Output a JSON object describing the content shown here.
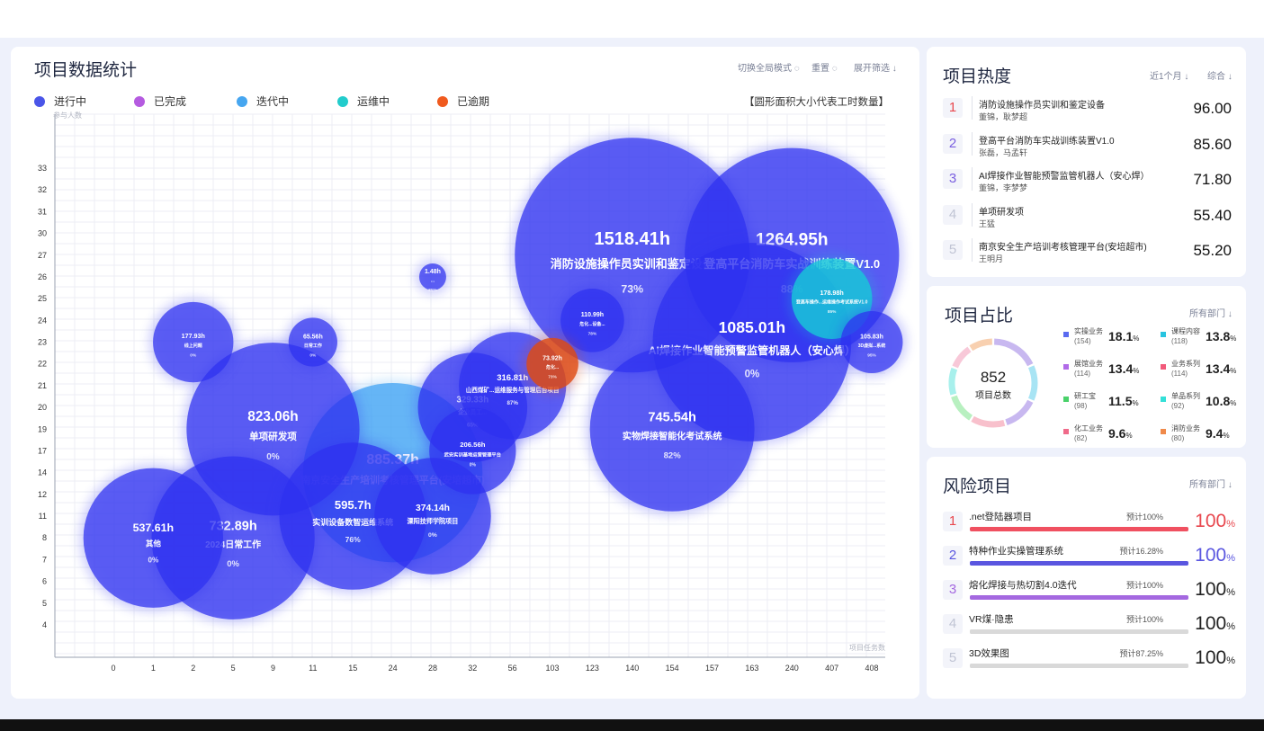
{
  "main": {
    "title": "项目数据统计",
    "actions": [
      "切换全局模式",
      "重置",
      "展开筛选"
    ],
    "legend": [
      {
        "label": "进行中",
        "color": "#4a55e8"
      },
      {
        "label": "已完成",
        "color": "#b55be0"
      },
      {
        "label": "迭代中",
        "color": "#46a6f0"
      },
      {
        "label": "运维中",
        "color": "#22cccc"
      },
      {
        "label": "已逾期",
        "color": "#f05a1e"
      }
    ],
    "note": "【圆形面积大小代表工时数量】"
  },
  "chart_data": {
    "type": "scatter",
    "ylabel": "参与人数",
    "xlabel": "项目任务数",
    "x_categories": [
      "0",
      "1",
      "2",
      "5",
      "9",
      "11",
      "15",
      "24",
      "28",
      "32",
      "56",
      "103",
      "123",
      "140",
      "154",
      "157",
      "163",
      "240",
      "407",
      "408"
    ],
    "y_ticks": [
      "4",
      "5",
      "6",
      "7",
      "8",
      "11",
      "12",
      "14",
      "17",
      "19",
      "20",
      "21",
      "22",
      "23",
      "24",
      "25",
      "26",
      "27",
      "30",
      "31",
      "32",
      "33"
    ],
    "bubbles": [
      {
        "name": "消防设施操作员实训和鉴定设备",
        "hours": "1518.41h",
        "progress": "73%",
        "x": "140",
        "y": "27",
        "status": "进行中"
      },
      {
        "name": "登高平台消防车实战训练装置V1.0",
        "hours": "1264.95h",
        "progress": "88%",
        "x": "240",
        "y": "27",
        "status": "进行中"
      },
      {
        "name": "AI焊接作业智能预警监管机器人（安心焊）",
        "hours": "1085.01h",
        "progress": "0%",
        "x": "163",
        "y": "23",
        "status": "进行中"
      },
      {
        "name": "南京安全生产培训考核管理平台(安培超市)",
        "hours": "885.37h",
        "progress": "",
        "x": "24",
        "y": "14",
        "status": "迭代中"
      },
      {
        "name": "单项研发项",
        "hours": "823.06h",
        "progress": "0%",
        "x": "9",
        "y": "19",
        "status": "进行中"
      },
      {
        "name": "实物焊接智能化考试系统",
        "hours": "745.54h",
        "progress": "82%",
        "x": "154",
        "y": "19",
        "status": "进行中"
      },
      {
        "name": "2024日常工作",
        "hours": "732.89h",
        "progress": "0%",
        "x": "5",
        "y": "8",
        "status": "进行中"
      },
      {
        "name": "实训设备数智运维系统",
        "hours": "595.7h",
        "progress": "76%",
        "x": "15",
        "y": "11",
        "status": "进行中"
      },
      {
        "name": "其他",
        "hours": "537.61h",
        "progress": "0%",
        "x": "1",
        "y": "8",
        "status": "进行中"
      },
      {
        "name": "溧阳技师学院项目",
        "hours": "374.14h",
        "progress": "0%",
        "x": "28",
        "y": "11",
        "status": "进行中"
      },
      {
        "name": "企业员工...",
        "hours": "329.33h",
        "progress": "65%",
        "x": "32",
        "y": "20",
        "status": "进行中"
      },
      {
        "name": "山西煤矿...运维服务与管理后台项目",
        "hours": "316.81h",
        "progress": "87%",
        "x": "56",
        "y": "21",
        "status": "进行中"
      },
      {
        "name": "武安实训基地运营管理平台",
        "hours": "206.56h",
        "progress": "0%",
        "x": "32",
        "y": "17",
        "status": "进行中"
      },
      {
        "name": "线上问题",
        "hours": "177.93h",
        "progress": "0%",
        "x": "2",
        "y": "23",
        "status": "进行中"
      },
      {
        "name": "登高车操作...运维操作考试系统V1.0",
        "hours": "178.98h",
        "progress": "85%",
        "x": "407",
        "y": "25",
        "status": "运维中"
      },
      {
        "name": "危化...设备...",
        "hours": "110.99h",
        "progress": "78%",
        "x": "123",
        "y": "24",
        "status": "进行中"
      },
      {
        "name": "3D虚拟...系统",
        "hours": "105.83h",
        "progress": "95%",
        "x": "408",
        "y": "23",
        "status": "进行中"
      },
      {
        "name": "危化...",
        "hours": "73.92h",
        "progress": "73%",
        "x": "103",
        "y": "22",
        "status": "已逾期"
      },
      {
        "name": "日常工作",
        "hours": "65.56h",
        "progress": "0%",
        "x": "11",
        "y": "23",
        "status": "进行中"
      },
      {
        "name": "...",
        "hours": "1.48h",
        "progress": "85%",
        "x": "28",
        "y": "26",
        "status": "进行中"
      }
    ]
  },
  "heat": {
    "title": "项目热度",
    "filters": [
      "近1个月",
      "综合"
    ],
    "items": [
      {
        "rank": "1",
        "name": "消防设施操作员实训和鉴定设备",
        "people": "董锦，耿梦超",
        "score": "96.00",
        "color": "#e8474e"
      },
      {
        "rank": "2",
        "name": "登高平台消防车实战训练装置V1.0",
        "people": "张磊，马孟轩",
        "score": "85.60",
        "color": "#7a5fe0"
      },
      {
        "rank": "3",
        "name": "AI焊接作业智能预警监管机器人（安心焊）",
        "people": "董锦，李梦梦",
        "score": "71.80",
        "color": "#7a5fe0"
      },
      {
        "rank": "4",
        "name": "单项研发项",
        "people": "王猛",
        "score": "55.40",
        "color": "#c0c4d4"
      },
      {
        "rank": "5",
        "name": "南京安全生产培训考核管理平台(安培超市)",
        "people": "王明月",
        "score": "55.20",
        "color": "#c0c4d4"
      }
    ]
  },
  "ratio": {
    "title": "项目占比",
    "filter": "所有部门",
    "total": "852",
    "total_label": "项目总数",
    "items": [
      {
        "label": "实操业务",
        "count": "(154)",
        "pct": "18.1",
        "color": "#5a6af0"
      },
      {
        "label": "课程内容",
        "count": "(118)",
        "pct": "13.8",
        "color": "#28c4e0"
      },
      {
        "label": "展馆业务",
        "count": "(114)",
        "pct": "13.4",
        "color": "#b16be8"
      },
      {
        "label": "业务系列",
        "count": "(114)",
        "pct": "13.4",
        "color": "#f25a7a"
      },
      {
        "label": "研工宝",
        "count": "(98)",
        "pct": "11.5",
        "color": "#4ad16a"
      },
      {
        "label": "单品系列",
        "count": "(92)",
        "pct": "10.8",
        "color": "#34e0d8"
      },
      {
        "label": "化工业务",
        "count": "(82)",
        "pct": "9.6",
        "color": "#f06a8a"
      },
      {
        "label": "消防业务",
        "count": "(80)",
        "pct": "9.4",
        "color": "#f08a4a"
      }
    ],
    "pct_unit": "%"
  },
  "risk": {
    "title": "风险项目",
    "filter": "所有部门",
    "items": [
      {
        "rank": "1",
        "name": ".net登陆器项目",
        "estimate": "预计100%",
        "pct": "100",
        "color": "#e8474e",
        "bar": "#f05060",
        "fill": 1.0
      },
      {
        "rank": "2",
        "name": "特种作业实操管理系统",
        "estimate": "预计16.28%",
        "pct": "100",
        "color": "#5a56e0",
        "bar": "#5a56e0",
        "fill": 1.0
      },
      {
        "rank": "3",
        "name": "熔化焊接与热切割4.0迭代",
        "estimate": "预计100%",
        "pct": "100",
        "color": "#222",
        "bar": "#a468e0",
        "fill": 1.0
      },
      {
        "rank": "4",
        "name": "VR煤·隐患",
        "estimate": "预计100%",
        "pct": "100",
        "color": "#222",
        "bar": "#d9d9d9",
        "fill": 1.0
      },
      {
        "rank": "5",
        "name": "3D效果图",
        "estimate": "预计87.25%",
        "pct": "100",
        "color": "#222",
        "bar": "#d9d9d9",
        "fill": 1.0
      }
    ],
    "pct_unit": "%"
  }
}
